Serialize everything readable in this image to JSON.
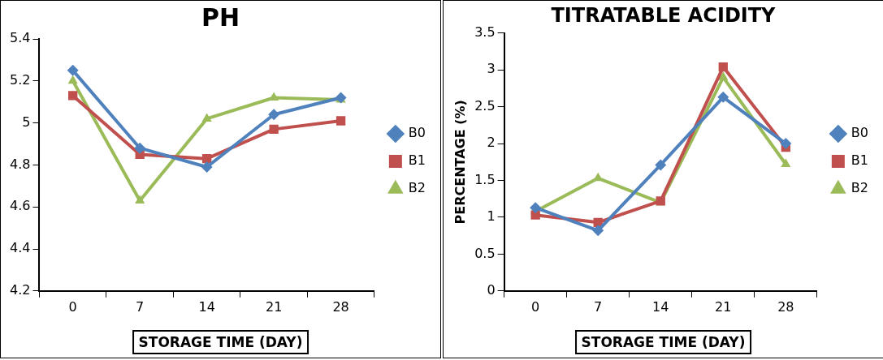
{
  "chart_data": [
    {
      "type": "line",
      "title": "PH",
      "xlabel": "STORAGE TIME (DAY)",
      "categories": [
        "0",
        "7",
        "14",
        "21",
        "28"
      ],
      "ylim": [
        4.2,
        5.4
      ],
      "yticks": [
        4.2,
        4.4,
        4.6,
        4.8,
        5,
        5.2,
        5.4
      ],
      "grid": false,
      "legend": "right",
      "series": [
        {
          "name": "B0",
          "color": "#4f81bd",
          "marker": "diamond",
          "values": [
            5.25,
            4.88,
            4.79,
            5.04,
            5.12
          ]
        },
        {
          "name": "B1",
          "color": "#c0504d",
          "marker": "square",
          "values": [
            5.13,
            4.85,
            4.83,
            4.97,
            5.01
          ]
        },
        {
          "name": "B2",
          "color": "#9bbb59",
          "marker": "triangle",
          "values": [
            5.2,
            4.63,
            5.02,
            5.12,
            5.11
          ]
        }
      ]
    },
    {
      "type": "line",
      "title": "TITRATABLE ACIDITY",
      "xlabel": "STORAGE TIME (DAY)",
      "ylabel": "PERCENTAGE (%)",
      "categories": [
        "0",
        "7",
        "14",
        "21",
        "28"
      ],
      "ylim": [
        0,
        3.5
      ],
      "yticks": [
        0,
        0.5,
        1,
        1.5,
        2,
        2.5,
        3,
        3.5
      ],
      "grid": false,
      "legend": "right",
      "series": [
        {
          "name": "B0",
          "color": "#4f81bd",
          "marker": "diamond",
          "values": [
            1.13,
            0.82,
            1.71,
            2.63,
            2.0
          ]
        },
        {
          "name": "B1",
          "color": "#c0504d",
          "marker": "square",
          "values": [
            1.03,
            0.93,
            1.22,
            3.04,
            1.95
          ]
        },
        {
          "name": "B2",
          "color": "#9bbb59",
          "marker": "triangle",
          "values": [
            1.08,
            1.53,
            1.2,
            2.9,
            1.72
          ]
        }
      ]
    }
  ]
}
